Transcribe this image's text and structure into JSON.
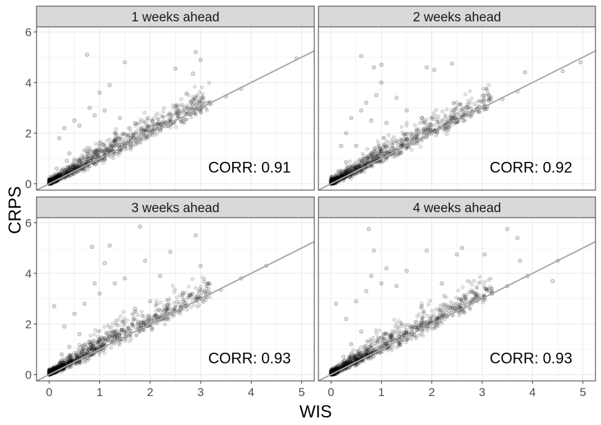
{
  "chart_data": {
    "type": "scatter",
    "xlabel": "WIS",
    "ylabel": "CRPS",
    "xlim": [
      -0.25,
      5.25
    ],
    "ylim": [
      -0.25,
      6.2
    ],
    "x_ticks": [
      0,
      1,
      2,
      3,
      4,
      5
    ],
    "y_ticks": [
      0,
      2,
      4,
      6
    ],
    "grid": true,
    "reference_line": {
      "slope": 1,
      "intercept": 0
    },
    "panels": [
      {
        "title": "1 weeks ahead",
        "annotation": "CORR: 0.91",
        "points": [
          [
            0.1,
            0.15
          ],
          [
            0.2,
            0.3
          ],
          [
            0.3,
            0.25
          ],
          [
            0.4,
            0.55
          ],
          [
            0.5,
            0.4
          ],
          [
            0.6,
            0.9
          ],
          [
            0.7,
            0.6
          ],
          [
            0.8,
            1.4
          ],
          [
            0.9,
            0.8
          ],
          [
            1.0,
            1.6
          ],
          [
            1.1,
            1.0
          ],
          [
            1.2,
            1.3
          ],
          [
            1.3,
            2.0
          ],
          [
            1.4,
            1.25
          ],
          [
            1.5,
            1.5
          ],
          [
            1.6,
            1.55
          ],
          [
            1.8,
            1.75
          ],
          [
            2.0,
            1.95
          ],
          [
            2.2,
            2.1
          ],
          [
            2.4,
            2.35
          ],
          [
            2.6,
            2.55
          ],
          [
            2.8,
            2.75
          ],
          [
            3.0,
            2.95
          ],
          [
            3.2,
            3.15
          ],
          [
            3.5,
            3.45
          ],
          [
            3.8,
            3.75
          ],
          [
            0.2,
            1.8
          ],
          [
            0.3,
            2.2
          ],
          [
            0.5,
            2.5
          ],
          [
            0.6,
            2.3
          ],
          [
            0.8,
            3.0
          ],
          [
            0.9,
            2.7
          ],
          [
            1.0,
            3.6
          ],
          [
            1.2,
            3.9
          ],
          [
            1.1,
            2.9
          ],
          [
            1.5,
            4.8
          ],
          [
            1.4,
            2.6
          ],
          [
            0.75,
            5.1
          ],
          [
            2.5,
            4.55
          ],
          [
            2.85,
            4.35
          ],
          [
            2.9,
            5.2
          ],
          [
            3.0,
            4.9
          ],
          [
            4.9,
            4.95
          ],
          [
            1.7,
            2.4
          ],
          [
            1.95,
            2.6
          ],
          [
            0.4,
            1.2
          ],
          [
            0.35,
            0.9
          ],
          [
            0.15,
            0.6
          ]
        ]
      },
      {
        "title": "2 weeks ahead",
        "annotation": "CORR: 0.92",
        "points": [
          [
            0.1,
            0.12
          ],
          [
            0.2,
            0.28
          ],
          [
            0.3,
            0.3
          ],
          [
            0.4,
            0.5
          ],
          [
            0.5,
            0.45
          ],
          [
            0.6,
            0.8
          ],
          [
            0.7,
            0.7
          ],
          [
            0.8,
            1.2
          ],
          [
            0.9,
            0.9
          ],
          [
            1.0,
            1.3
          ],
          [
            1.1,
            1.1
          ],
          [
            1.2,
            1.4
          ],
          [
            1.3,
            1.35
          ],
          [
            1.5,
            1.5
          ],
          [
            1.7,
            1.7
          ],
          [
            1.9,
            1.85
          ],
          [
            2.1,
            2.05
          ],
          [
            2.3,
            2.25
          ],
          [
            2.5,
            2.45
          ],
          [
            2.8,
            2.75
          ],
          [
            3.1,
            3.05
          ],
          [
            3.4,
            3.35
          ],
          [
            3.7,
            3.65
          ],
          [
            0.2,
            1.5
          ],
          [
            0.3,
            2.0
          ],
          [
            0.4,
            2.6
          ],
          [
            0.6,
            2.9
          ],
          [
            0.7,
            3.2
          ],
          [
            0.8,
            2.5
          ],
          [
            0.9,
            3.5
          ],
          [
            1.0,
            4.0
          ],
          [
            1.1,
            2.4
          ],
          [
            1.3,
            3.4
          ],
          [
            0.6,
            5.05
          ],
          [
            0.85,
            4.6
          ],
          [
            1.0,
            4.7
          ],
          [
            1.9,
            4.6
          ],
          [
            2.05,
            4.5
          ],
          [
            2.4,
            4.75
          ],
          [
            3.85,
            4.4
          ],
          [
            4.95,
            4.8
          ],
          [
            4.6,
            4.45
          ],
          [
            1.5,
            2.9
          ],
          [
            1.8,
            2.6
          ],
          [
            0.5,
            1.5
          ],
          [
            0.3,
            0.85
          ],
          [
            0.15,
            0.5
          ]
        ]
      },
      {
        "title": "3 weeks ahead",
        "annotation": "CORR: 0.93",
        "points": [
          [
            0.1,
            0.1
          ],
          [
            0.2,
            0.3
          ],
          [
            0.3,
            0.35
          ],
          [
            0.4,
            0.45
          ],
          [
            0.5,
            0.55
          ],
          [
            0.6,
            0.9
          ],
          [
            0.7,
            0.7
          ],
          [
            0.8,
            1.3
          ],
          [
            0.9,
            0.95
          ],
          [
            1.0,
            1.4
          ],
          [
            1.1,
            1.15
          ],
          [
            1.2,
            1.5
          ],
          [
            1.4,
            1.4
          ],
          [
            1.6,
            1.6
          ],
          [
            1.8,
            1.8
          ],
          [
            2.0,
            2.0
          ],
          [
            2.2,
            2.2
          ],
          [
            2.4,
            2.4
          ],
          [
            2.7,
            2.7
          ],
          [
            3.0,
            3.0
          ],
          [
            3.4,
            3.35
          ],
          [
            3.8,
            3.8
          ],
          [
            4.3,
            4.3
          ],
          [
            0.1,
            2.7
          ],
          [
            0.3,
            1.9
          ],
          [
            0.5,
            2.4
          ],
          [
            0.7,
            2.8
          ],
          [
            0.9,
            3.6
          ],
          [
            1.0,
            3.2
          ],
          [
            1.1,
            4.4
          ],
          [
            1.3,
            3.6
          ],
          [
            1.5,
            3.8
          ],
          [
            0.85,
            5.05
          ],
          [
            1.2,
            5.1
          ],
          [
            1.8,
            5.85
          ],
          [
            1.9,
            4.5
          ],
          [
            2.4,
            4.85
          ],
          [
            2.9,
            5.5
          ],
          [
            3.0,
            4.3
          ],
          [
            2.2,
            3.9
          ],
          [
            1.7,
            2.6
          ],
          [
            2.0,
            2.9
          ],
          [
            0.4,
            1.1
          ],
          [
            0.25,
            0.8
          ],
          [
            0.6,
            1.6
          ]
        ]
      },
      {
        "title": "4 weeks ahead",
        "annotation": "CORR: 0.93",
        "points": [
          [
            0.1,
            0.1
          ],
          [
            0.2,
            0.25
          ],
          [
            0.3,
            0.35
          ],
          [
            0.4,
            0.5
          ],
          [
            0.5,
            0.6
          ],
          [
            0.6,
            0.85
          ],
          [
            0.7,
            0.75
          ],
          [
            0.8,
            1.3
          ],
          [
            0.9,
            1.0
          ],
          [
            1.0,
            1.45
          ],
          [
            1.1,
            1.2
          ],
          [
            1.2,
            1.55
          ],
          [
            1.4,
            1.5
          ],
          [
            1.6,
            1.65
          ],
          [
            1.8,
            1.85
          ],
          [
            2.0,
            2.05
          ],
          [
            2.3,
            2.3
          ],
          [
            2.6,
            2.6
          ],
          [
            2.9,
            2.9
          ],
          [
            3.2,
            3.2
          ],
          [
            3.5,
            3.5
          ],
          [
            3.9,
            3.9
          ],
          [
            4.5,
            4.5
          ],
          [
            0.1,
            2.8
          ],
          [
            0.3,
            2.2
          ],
          [
            0.5,
            2.9
          ],
          [
            0.7,
            3.3
          ],
          [
            0.8,
            3.9
          ],
          [
            1.0,
            3.6
          ],
          [
            1.1,
            4.2
          ],
          [
            1.3,
            3.5
          ],
          [
            1.5,
            4.1
          ],
          [
            0.75,
            5.75
          ],
          [
            0.85,
            4.9
          ],
          [
            1.9,
            4.9
          ],
          [
            2.5,
            4.75
          ],
          [
            2.6,
            5.0
          ],
          [
            3.05,
            4.75
          ],
          [
            3.5,
            5.75
          ],
          [
            3.7,
            5.4
          ],
          [
            3.75,
            4.5
          ],
          [
            4.4,
            3.7
          ],
          [
            2.2,
            3.6
          ],
          [
            1.8,
            2.7
          ],
          [
            0.4,
            1.2
          ],
          [
            0.25,
            0.7
          ],
          [
            0.6,
            1.7
          ]
        ]
      }
    ]
  }
}
